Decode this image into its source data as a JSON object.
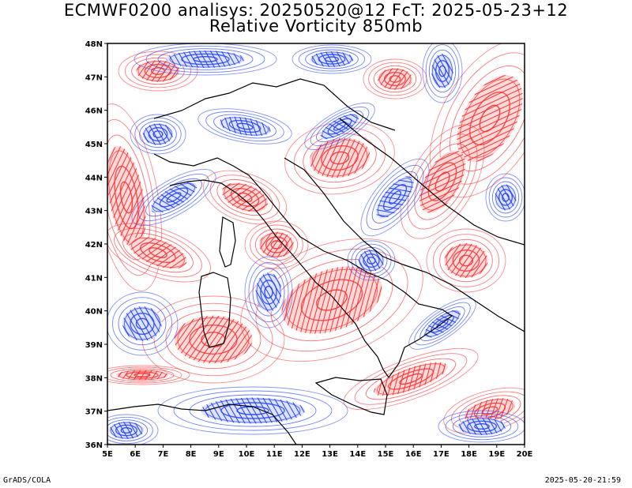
{
  "title_line1": "ECMWF0200 analisys: 20250520@12 FcT: 2025-05-23+12",
  "title_line2": "Relative Vorticity 850mb",
  "footer_left": "GrADS/COLA",
  "footer_right": "2025-05-20-21:59",
  "map": {
    "lat_range": [
      36,
      48
    ],
    "lon_range": [
      5,
      20
    ],
    "lat_labels": [
      "48N",
      "47N",
      "46N",
      "45N",
      "44N",
      "43N",
      "42N",
      "41N",
      "40N",
      "39N",
      "38N",
      "37N",
      "36N"
    ],
    "lon_labels": [
      "5E",
      "6E",
      "7E",
      "8E",
      "9E",
      "10E",
      "11E",
      "12E",
      "13E",
      "14E",
      "15E",
      "16E",
      "17E",
      "18E",
      "19E",
      "20E"
    ],
    "colors": {
      "positive": "#ff3030",
      "negative": "#2040ff",
      "coast": "#000000",
      "frame": "#000000"
    }
  }
}
